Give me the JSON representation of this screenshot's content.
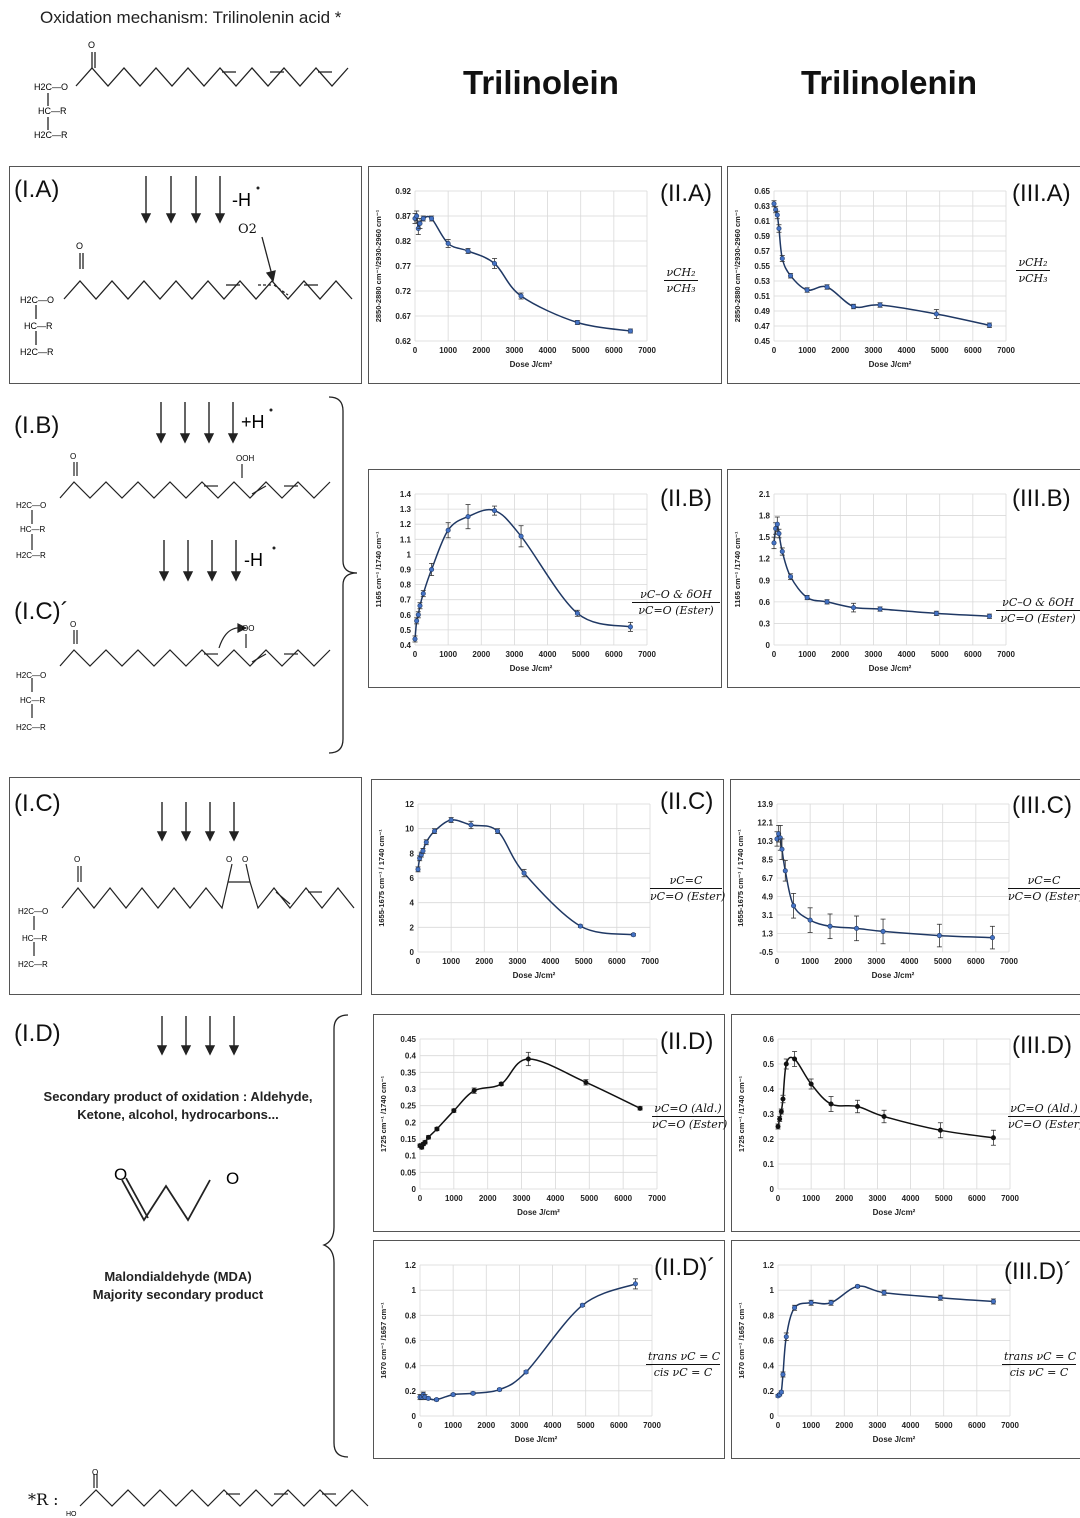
{
  "header": {
    "mechanism_title": "Oxidation mechanism: Trilinolenin acid *",
    "col_trilinolein": "Trilinolein",
    "col_trilinolenin": "Trilinolenin"
  },
  "structure_labels": {
    "o_top": "O",
    "o2": "O",
    "ooh": "OOH",
    "oo": "OO",
    "h2c_o": "H2C—O",
    "hc_r": "HC—R",
    "h2c_r": "H2C—R",
    "o_label": "O"
  },
  "mechanism": {
    "IA": {
      "label": "(I.A)",
      "arrow_text": "-H",
      "o2_text": "O2"
    },
    "IB": {
      "label": "(I.B)",
      "arrow_text": "+H"
    },
    "ICp": {
      "label": "(I.C)´",
      "arrow_text": "-H"
    },
    "IC": {
      "label": "(I.C)"
    },
    "ID": {
      "label": "(I.D)",
      "secondary_text_1": "Secondary product of oxidation : Aldehyde,",
      "secondary_text_2": "Ketone, alcohol, hydrocarbons...",
      "mda_text_1": "Malondialdehyde (MDA)",
      "mda_text_2": "Majority secondary product"
    }
  },
  "footnote": {
    "r_label": "*R :",
    "ho_label": "HO"
  },
  "charts_meta": {
    "IIA": {
      "tag": "(II.A)"
    },
    "IIIA": {
      "tag": "(III.A)"
    },
    "IIB": {
      "tag": "(II.B)"
    },
    "IIIB": {
      "tag": "(III.B)"
    },
    "IIC": {
      "tag": "(II.C)"
    },
    "IIIC": {
      "tag": "(III.C)"
    },
    "IID": {
      "tag": "(II.D)"
    },
    "IIID": {
      "tag": "(III.D)"
    },
    "IIDp": {
      "tag": "(II.D)´"
    },
    "IIIDp": {
      "tag": "(III.D)´"
    }
  },
  "fractions": {
    "A": {
      "num": "νCH₂",
      "den": "νCH₃"
    },
    "B": {
      "num": "νC–O & δOH",
      "den": "νC=O (Ester)"
    },
    "C": {
      "num": "νC=C",
      "den": "νC=O (Ester)"
    },
    "D": {
      "num": "νC=O (Ald.)",
      "den": "νC=O (Ester)"
    },
    "Dp": {
      "num": "trans νC = C",
      "den": "cis νC = C"
    }
  },
  "chart_data": [
    {
      "id": "IIA",
      "type": "line",
      "xlabel": "Dose J/cm²",
      "ylabel": "2850-2880 cm⁻¹/2930-2960 cm⁻¹",
      "yticks": [
        "0.62",
        "0.67",
        "0.72",
        "0.77",
        "0.82",
        "0.87",
        "0.92"
      ],
      "ylim": [
        0.62,
        0.92
      ],
      "xticks": [
        "0",
        "1000",
        "2000",
        "3000",
        "4000",
        "5000",
        "6000",
        "7000"
      ],
      "xlim": [
        0,
        7000
      ],
      "grid": true,
      "color": "#1f3864",
      "marker": "#4472c4",
      "x": [
        0,
        50,
        100,
        150,
        250,
        500,
        1000,
        1600,
        2400,
        3200,
        4900,
        6500
      ],
      "y": [
        0.865,
        0.87,
        0.845,
        0.855,
        0.865,
        0.865,
        0.815,
        0.8,
        0.775,
        0.71,
        0.657,
        0.64
      ],
      "err": [
        0.01,
        0.01,
        0.012,
        0.01,
        0.005,
        0.005,
        0.008,
        0.005,
        0.01,
        0.006,
        0.004,
        0.004
      ]
    },
    {
      "id": "IIIA",
      "type": "line",
      "xlabel": "Dose J/cm²",
      "ylabel": "2850-2880 cm⁻¹/2930-2960 cm⁻¹",
      "yticks": [
        "0.45",
        "0.47",
        "0.49",
        "0.51",
        "0.53",
        "0.55",
        "0.57",
        "0.59",
        "0.61",
        "0.63",
        "0.65"
      ],
      "ylim": [
        0.45,
        0.65
      ],
      "xticks": [
        "0",
        "1000",
        "2000",
        "3000",
        "4000",
        "5000",
        "6000",
        "7000"
      ],
      "xlim": [
        0,
        7000
      ],
      "grid": true,
      "color": "#1f3864",
      "marker": "#4472c4",
      "x": [
        0,
        50,
        100,
        150,
        250,
        500,
        1000,
        1600,
        2400,
        3200,
        4900,
        6500
      ],
      "y": [
        0.633,
        0.625,
        0.618,
        0.6,
        0.56,
        0.537,
        0.518,
        0.522,
        0.496,
        0.498,
        0.486,
        0.471
      ],
      "err": [
        0.004,
        0.004,
        0.005,
        0.005,
        0.004,
        0.003,
        0.003,
        0.003,
        0.003,
        0.003,
        0.006,
        0.003
      ]
    },
    {
      "id": "IIB",
      "type": "line",
      "xlabel": "Dose J/cm²",
      "ylabel": "1165 cm⁻¹ /1740 cm⁻¹",
      "yticks": [
        "0.4",
        "0.5",
        "0.6",
        "0.7",
        "0.8",
        "0.9",
        "1",
        "1.1",
        "1.2",
        "1.3",
        "1.4"
      ],
      "ylim": [
        0.4,
        1.4
      ],
      "xticks": [
        "0",
        "1000",
        "2000",
        "3000",
        "4000",
        "5000",
        "6000",
        "7000"
      ],
      "xlim": [
        0,
        7000
      ],
      "grid": true,
      "color": "#1f3864",
      "marker": "#4472c4",
      "x": [
        0,
        50,
        100,
        150,
        250,
        500,
        1000,
        1600,
        2400,
        3200,
        4900,
        6500
      ],
      "y": [
        0.44,
        0.56,
        0.6,
        0.66,
        0.74,
        0.9,
        1.16,
        1.25,
        1.29,
        1.12,
        0.61,
        0.52
      ],
      "err": [
        0.02,
        0.02,
        0.02,
        0.02,
        0.02,
        0.04,
        0.05,
        0.08,
        0.03,
        0.07,
        0.02,
        0.03
      ]
    },
    {
      "id": "IIIB",
      "type": "line",
      "xlabel": "Dose J/cm²",
      "ylabel": "1165 cm⁻¹ /1740 cm⁻¹",
      "yticks": [
        "0",
        "0.3",
        "0.6",
        "0.9",
        "1.2",
        "1.5",
        "1.8",
        "2.1"
      ],
      "ylim": [
        0,
        2.1
      ],
      "xticks": [
        "0",
        "1000",
        "2000",
        "3000",
        "4000",
        "5000",
        "6000",
        "7000"
      ],
      "xlim": [
        0,
        7000
      ],
      "grid": true,
      "color": "#1f3864",
      "marker": "#4472c4",
      "x": [
        0,
        50,
        100,
        150,
        250,
        500,
        1000,
        1600,
        2400,
        3200,
        4900,
        6500
      ],
      "y": [
        1.42,
        1.62,
        1.68,
        1.55,
        1.3,
        0.95,
        0.66,
        0.6,
        0.52,
        0.5,
        0.44,
        0.4
      ],
      "err": [
        0.08,
        0.08,
        0.1,
        0.06,
        0.05,
        0.04,
        0.03,
        0.03,
        0.06,
        0.03,
        0.03,
        0.03
      ]
    },
    {
      "id": "IIC",
      "type": "line",
      "xlabel": "Dose J/cm²",
      "ylabel": "1655-1675 cm⁻¹ / 1740 cm⁻¹",
      "yticks": [
        "0",
        "2",
        "4",
        "6",
        "8",
        "10",
        "12"
      ],
      "ylim": [
        0,
        12
      ],
      "xticks": [
        "0",
        "1000",
        "2000",
        "3000",
        "4000",
        "5000",
        "6000",
        "7000"
      ],
      "xlim": [
        0,
        7000
      ],
      "grid": true,
      "color": "#1f3864",
      "marker": "#4472c4",
      "x": [
        0,
        50,
        100,
        150,
        250,
        500,
        1000,
        1600,
        2400,
        3200,
        4900,
        6500
      ],
      "y": [
        6.7,
        7.6,
        7.9,
        8.2,
        8.9,
        9.8,
        10.7,
        10.3,
        9.8,
        6.4,
        2.1,
        1.4
      ],
      "err": [
        0.2,
        0.2,
        0.2,
        0.2,
        0.2,
        0.2,
        0.2,
        0.3,
        0.2,
        0.3,
        0.1,
        0.1
      ]
    },
    {
      "id": "IIIC",
      "type": "line",
      "xlabel": "Dose J/cm²",
      "ylabel": "1655-1675 cm⁻¹ / 1740 cm⁻¹",
      "yticks": [
        "-0.5",
        "1.3",
        "3.1",
        "4.9",
        "6.7",
        "8.5",
        "10.3",
        "12.1",
        "13.9"
      ],
      "ylim": [
        -0.5,
        13.9
      ],
      "xticks": [
        "0",
        "1000",
        "2000",
        "3000",
        "4000",
        "5000",
        "6000",
        "7000"
      ],
      "xlim": [
        0,
        7000
      ],
      "grid": true,
      "color": "#1f3864",
      "marker": "#4472c4",
      "x": [
        0,
        50,
        100,
        150,
        250,
        500,
        1000,
        1600,
        2400,
        3200,
        4900,
        6500
      ],
      "y": [
        10.5,
        11.0,
        10.6,
        9.5,
        7.4,
        4.0,
        2.6,
        2.0,
        1.8,
        1.5,
        1.1,
        0.9
      ],
      "err": [
        0.7,
        0.8,
        1.2,
        1.0,
        1.0,
        1.2,
        1.2,
        1.2,
        1.2,
        1.2,
        1.1,
        1.1
      ]
    },
    {
      "id": "IID",
      "type": "line",
      "xlabel": "Dose J/cm²",
      "ylabel": "1725 cm⁻¹ /1740 cm⁻¹",
      "yticks": [
        "0",
        "0.05",
        "0.1",
        "0.15",
        "0.2",
        "0.25",
        "0.3",
        "0.35",
        "0.4",
        "0.45"
      ],
      "ylim": [
        0,
        0.45
      ],
      "xticks": [
        "0",
        "1000",
        "2000",
        "3000",
        "4000",
        "5000",
        "6000",
        "7000"
      ],
      "xlim": [
        0,
        7000
      ],
      "grid": true,
      "color": "#111111",
      "marker": "#111111",
      "x": [
        0,
        50,
        100,
        150,
        250,
        500,
        1000,
        1600,
        2400,
        3200,
        4900,
        6500
      ],
      "y": [
        0.13,
        0.125,
        0.135,
        0.14,
        0.155,
        0.18,
        0.235,
        0.295,
        0.315,
        0.39,
        0.32,
        0.242
      ],
      "err": [
        0.005,
        0.005,
        0.005,
        0.005,
        0.005,
        0.005,
        0.005,
        0.008,
        0.005,
        0.02,
        0.008,
        0.005
      ]
    },
    {
      "id": "IIID",
      "type": "line",
      "xlabel": "Dose J/cm²",
      "ylabel": "1725 cm⁻¹ /1740 cm⁻¹",
      "yticks": [
        "0",
        "0.1",
        "0.2",
        "0.3",
        "0.4",
        "0.5",
        "0.6"
      ],
      "ylim": [
        0,
        0.6
      ],
      "xticks": [
        "0",
        "1000",
        "2000",
        "3000",
        "4000",
        "5000",
        "6000",
        "7000"
      ],
      "xlim": [
        0,
        7000
      ],
      "grid": true,
      "color": "#111111",
      "marker": "#111111",
      "x": [
        0,
        50,
        100,
        150,
        250,
        500,
        1000,
        1600,
        2400,
        3200,
        4900,
        6500
      ],
      "y": [
        0.25,
        0.28,
        0.31,
        0.36,
        0.5,
        0.52,
        0.42,
        0.34,
        0.33,
        0.29,
        0.235,
        0.205
      ],
      "err": [
        0.01,
        0.01,
        0.01,
        0.015,
        0.02,
        0.03,
        0.02,
        0.03,
        0.025,
        0.025,
        0.03,
        0.03
      ]
    },
    {
      "id": "IIDp",
      "type": "line",
      "xlabel": "Dose J/cm²",
      "ylabel": "1670 cm⁻¹ /1657 cm⁻¹",
      "yticks": [
        "0",
        "0.2",
        "0.4",
        "0.6",
        "0.8",
        "1",
        "1.2"
      ],
      "ylim": [
        0,
        1.2
      ],
      "xticks": [
        "0",
        "1000",
        "2000",
        "3000",
        "4000",
        "5000",
        "6000",
        "7000"
      ],
      "xlim": [
        0,
        7000
      ],
      "grid": true,
      "color": "#1f3864",
      "marker": "#4472c4",
      "x": [
        0,
        50,
        100,
        150,
        250,
        500,
        1000,
        1600,
        2400,
        3200,
        4900,
        6500
      ],
      "y": [
        0.15,
        0.15,
        0.17,
        0.15,
        0.14,
        0.13,
        0.17,
        0.18,
        0.21,
        0.35,
        0.88,
        1.05
      ],
      "err": [
        0.02,
        0.02,
        0.02,
        0.02,
        0.01,
        0.01,
        0.01,
        0.01,
        0.01,
        0.01,
        0.01,
        0.04
      ]
    },
    {
      "id": "IIIDp",
      "type": "line",
      "xlabel": "Dose J/cm²",
      "ylabel": "1670 cm⁻¹ /1657 cm⁻¹",
      "yticks": [
        "0",
        "0.2",
        "0.4",
        "0.6",
        "0.8",
        "1",
        "1.2"
      ],
      "ylim": [
        0,
        1.2
      ],
      "xticks": [
        "0",
        "1000",
        "2000",
        "3000",
        "4000",
        "5000",
        "6000",
        "7000"
      ],
      "xlim": [
        0,
        7000
      ],
      "grid": true,
      "color": "#1f3864",
      "marker": "#4472c4",
      "x": [
        0,
        50,
        100,
        150,
        250,
        500,
        1000,
        1600,
        2400,
        3200,
        4900,
        6500
      ],
      "y": [
        0.16,
        0.17,
        0.19,
        0.33,
        0.63,
        0.86,
        0.9,
        0.9,
        1.03,
        0.98,
        0.94,
        0.91
      ],
      "err": [
        0.01,
        0.01,
        0.01,
        0.02,
        0.03,
        0.02,
        0.02,
        0.02,
        0.01,
        0.02,
        0.02,
        0.02
      ]
    }
  ]
}
